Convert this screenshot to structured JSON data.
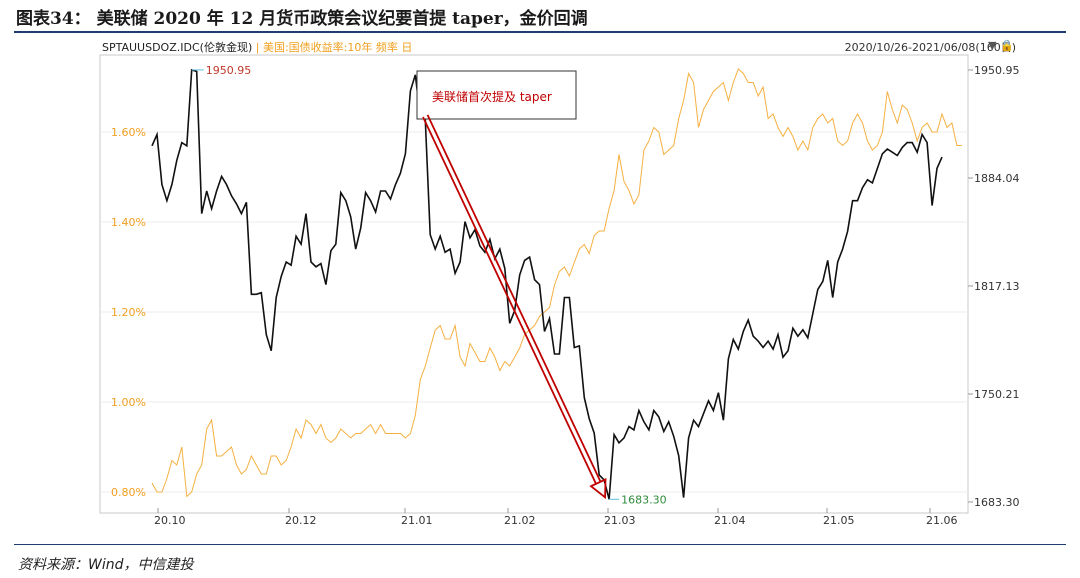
{
  "figure_title": "图表34：  美联储 2020 年 12 月货币政策会议纪要首提 taper，金价回调",
  "source_note": "资料来源：Wind，中信建投",
  "legend": {
    "gold_label": "SPTAUUSDOZ.IDC(伦敦金现)",
    "separator": "|",
    "bond_label": "美国:国债收益率:10年 频率 日"
  },
  "date_range": "2020/10/26-2021/06/08(160日)",
  "range_icons": "▼ 🔒",
  "colors": {
    "gold": "#111111",
    "bond": "#f5b041",
    "annotation_arrow": "#c00000",
    "axis": "#c0c0c0"
  },
  "chart_data": {
    "type": "line",
    "x_ticks": [
      "20.10",
      "20.12",
      "21.01",
      "21.02",
      "21.03",
      "21.04",
      "21.05",
      "21.06"
    ],
    "y_left": {
      "ticks": [
        "0.80%",
        "1.00%",
        "1.20%",
        "1.40%",
        "1.60%"
      ],
      "range": [
        0.78,
        1.75
      ]
    },
    "y_right": {
      "ticks": [
        "1683.30",
        "1750.21",
        "1817.13",
        "1884.04",
        "1950.95"
      ],
      "range": [
        1683.3,
        1950.95
      ]
    },
    "series": [
      {
        "name": "SPTAUUSDOZ.IDC(伦敦金现)",
        "axis": "right",
        "values": [
          1904,
          1911,
          1880,
          1870,
          1880,
          1895,
          1906,
          1904,
          1951,
          1950,
          1862,
          1876,
          1865,
          1876,
          1885,
          1880,
          1873,
          1868,
          1862,
          1869,
          1812,
          1812,
          1813,
          1787,
          1777,
          1810,
          1823,
          1832,
          1830,
          1848,
          1843,
          1862,
          1832,
          1829,
          1831,
          1818,
          1839,
          1843,
          1875,
          1870,
          1860,
          1840,
          1853,
          1875,
          1870,
          1863,
          1876,
          1876,
          1871,
          1880,
          1887,
          1899,
          1938,
          1948,
          1922,
          1920,
          1849,
          1840,
          1848,
          1838,
          1840,
          1825,
          1832,
          1857,
          1847,
          1852,
          1842,
          1838,
          1846,
          1834,
          1840,
          1828,
          1794,
          1802,
          1824,
          1833,
          1835,
          1821,
          1818,
          1789,
          1797,
          1775,
          1775,
          1810,
          1810,
          1779,
          1780,
          1748,
          1735,
          1726,
          1700,
          1697,
          1685,
          1725,
          1720,
          1723,
          1730,
          1728,
          1740,
          1733,
          1728,
          1740,
          1736,
          1727,
          1733,
          1724,
          1712,
          1686,
          1723,
          1734,
          1730,
          1738,
          1746,
          1740,
          1751,
          1734,
          1772,
          1784,
          1778,
          1789,
          1796,
          1786,
          1783,
          1779,
          1783,
          1778,
          1787,
          1773,
          1777,
          1791,
          1786,
          1790,
          1785,
          1800,
          1815,
          1820,
          1833,
          1810,
          1832,
          1840,
          1851,
          1870,
          1870,
          1878,
          1883,
          1881,
          1890,
          1899,
          1902,
          1900,
          1898,
          1903,
          1906,
          1906,
          1900,
          1911,
          1906,
          1867,
          1890,
          1897
        ]
      },
      {
        "name": "美国:国债收益率:10年",
        "axis": "left",
        "values": [
          0.82,
          0.8,
          0.8,
          0.83,
          0.87,
          0.86,
          0.9,
          0.79,
          0.8,
          0.84,
          0.86,
          0.94,
          0.96,
          0.88,
          0.88,
          0.89,
          0.9,
          0.86,
          0.84,
          0.85,
          0.88,
          0.86,
          0.84,
          0.84,
          0.88,
          0.88,
          0.86,
          0.87,
          0.9,
          0.94,
          0.92,
          0.96,
          0.95,
          0.93,
          0.95,
          0.92,
          0.91,
          0.92,
          0.94,
          0.93,
          0.92,
          0.93,
          0.93,
          0.94,
          0.95,
          0.93,
          0.95,
          0.93,
          0.93,
          0.93,
          0.93,
          0.92,
          0.93,
          0.97,
          1.05,
          1.08,
          1.12,
          1.16,
          1.17,
          1.14,
          1.14,
          1.17,
          1.1,
          1.08,
          1.13,
          1.11,
          1.09,
          1.09,
          1.12,
          1.1,
          1.07,
          1.09,
          1.08,
          1.1,
          1.12,
          1.15,
          1.16,
          1.17,
          1.19,
          1.2,
          1.21,
          1.26,
          1.29,
          1.3,
          1.28,
          1.31,
          1.34,
          1.35,
          1.33,
          1.37,
          1.38,
          1.38,
          1.43,
          1.47,
          1.55,
          1.49,
          1.47,
          1.44,
          1.46,
          1.56,
          1.58,
          1.61,
          1.6,
          1.55,
          1.56,
          1.57,
          1.63,
          1.67,
          1.73,
          1.71,
          1.61,
          1.65,
          1.67,
          1.69,
          1.7,
          1.71,
          1.67,
          1.71,
          1.74,
          1.73,
          1.71,
          1.71,
          1.68,
          1.7,
          1.63,
          1.64,
          1.61,
          1.59,
          1.61,
          1.59,
          1.56,
          1.58,
          1.56,
          1.61,
          1.63,
          1.64,
          1.62,
          1.63,
          1.58,
          1.57,
          1.58,
          1.62,
          1.64,
          1.62,
          1.58,
          1.56,
          1.57,
          1.6,
          1.69,
          1.65,
          1.62,
          1.66,
          1.65,
          1.62,
          1.58,
          1.61,
          1.62,
          1.6,
          1.6,
          1.64,
          1.61,
          1.62,
          1.57,
          1.57
        ]
      }
    ],
    "annotations": [
      {
        "text": "1950.95",
        "series": 0,
        "index": 8
      },
      {
        "text": "1683.30",
        "series": 0,
        "index": 92
      },
      {
        "text": "美联储首次提及 taper",
        "arrow_from_index": 55,
        "arrow_to_index": 92
      }
    ]
  }
}
